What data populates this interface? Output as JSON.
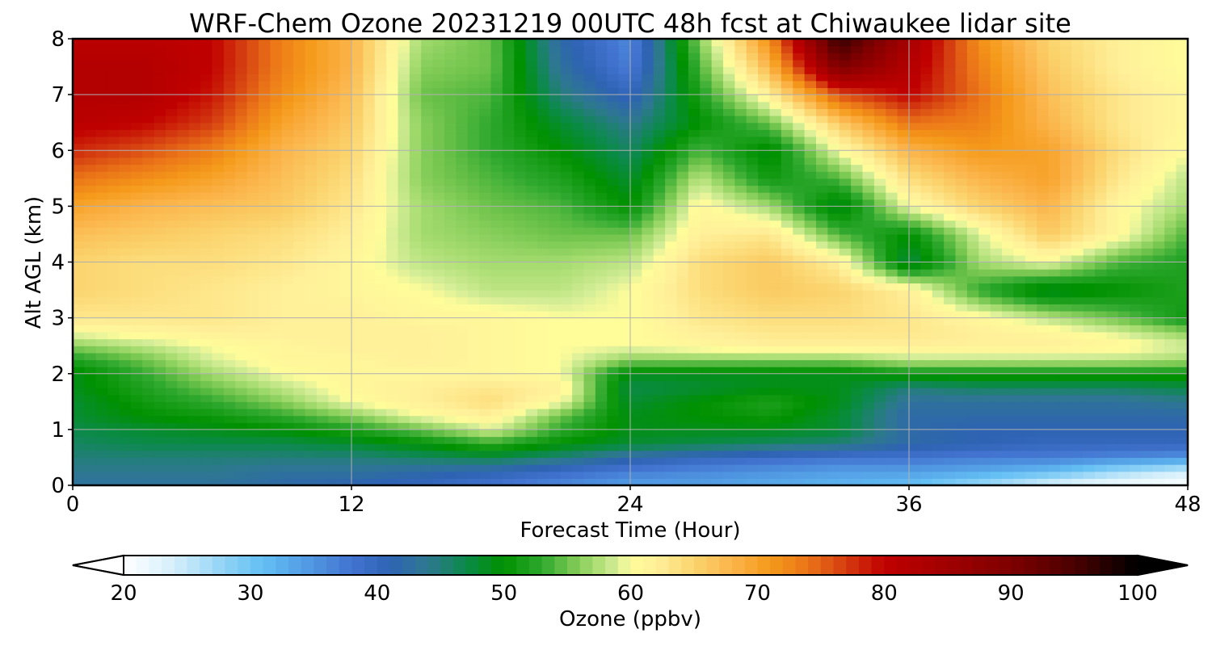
{
  "chart_data": {
    "type": "heatmap",
    "title": "WRF-Chem Ozone  20231219 00UTC 48h fcst at Chiwaukee lidar site",
    "xlabel": "Forecast Time (Hour)",
    "ylabel": "Alt AGL (km)",
    "xlim": [
      0,
      48
    ],
    "ylim": [
      0,
      8
    ],
    "xticks": [
      0,
      12,
      24,
      36,
      48
    ],
    "yticks": [
      0,
      1,
      2,
      3,
      4,
      5,
      6,
      7,
      8
    ],
    "grid": true,
    "x": [
      0,
      3,
      6,
      9,
      12,
      15,
      18,
      21,
      24,
      27,
      30,
      33,
      36,
      39,
      42,
      45,
      48
    ],
    "y": [
      0,
      0.25,
      0.5,
      0.75,
      1,
      1.25,
      1.5,
      1.75,
      2,
      2.25,
      2.5,
      2.75,
      3,
      3.5,
      4,
      4.5,
      5,
      5.5,
      6,
      6.5,
      7,
      7.5,
      8
    ],
    "z": [
      [
        43,
        43,
        43,
        42,
        41,
        40,
        38,
        36,
        34,
        34,
        33,
        32,
        31,
        27,
        23,
        21,
        20
      ],
      [
        44,
        44,
        44,
        43,
        43,
        42,
        41,
        39,
        37,
        36,
        35,
        34,
        34,
        33,
        31,
        27,
        24
      ],
      [
        45,
        45,
        45,
        45,
        45,
        46,
        47,
        45,
        42,
        40,
        39,
        38,
        38,
        37,
        37,
        36,
        35
      ],
      [
        46,
        47,
        47,
        47,
        48,
        50,
        53,
        50,
        48,
        47,
        46,
        45,
        42,
        41,
        40,
        40,
        40
      ],
      [
        47,
        48,
        49,
        50,
        52,
        55,
        59,
        53,
        49,
        49,
        49,
        48,
        42,
        41,
        41,
        41,
        41
      ],
      [
        48,
        50,
        51,
        53,
        56,
        60,
        62,
        55,
        49,
        50,
        51,
        48,
        42,
        42,
        42,
        42,
        42
      ],
      [
        48,
        51,
        53,
        56,
        60,
        62,
        64,
        60,
        48,
        50,
        52,
        49,
        43,
        43,
        43,
        43,
        44
      ],
      [
        49,
        52,
        55,
        58,
        61,
        62,
        63,
        62,
        47,
        48,
        49,
        49,
        45,
        46,
        46,
        46,
        47
      ],
      [
        49,
        53,
        57,
        60,
        61,
        61,
        61,
        60,
        49,
        49,
        49,
        49,
        51,
        51,
        51,
        51,
        51
      ],
      [
        52,
        55,
        59,
        61,
        61,
        62,
        61,
        60,
        56,
        56,
        56,
        56,
        58,
        58,
        58,
        58,
        57
      ],
      [
        56,
        58,
        60,
        61,
        62,
        62,
        61,
        60,
        60,
        61,
        62,
        62,
        62,
        62,
        62,
        61,
        59
      ],
      [
        60,
        61,
        62,
        62,
        62,
        62,
        61,
        60,
        60,
        62,
        63,
        63,
        63,
        62,
        61,
        59,
        56
      ],
      [
        63,
        63,
        63,
        62,
        62,
        61,
        61,
        60,
        60,
        63,
        64,
        64,
        63,
        61,
        58,
        55,
        51
      ],
      [
        65,
        64,
        63,
        62,
        61,
        60,
        58,
        58,
        60,
        64,
        66,
        65,
        62,
        53,
        48,
        50,
        52
      ],
      [
        65,
        64,
        64,
        63,
        61,
        58,
        57,
        57,
        58,
        64,
        66,
        62,
        47,
        57,
        60,
        54,
        52
      ],
      [
        67,
        66,
        65,
        64,
        62,
        57,
        56,
        55,
        55,
        62,
        63,
        54,
        50,
        59,
        66,
        61,
        54
      ],
      [
        70,
        68,
        67,
        66,
        63,
        57,
        55,
        54,
        50,
        61,
        57,
        48,
        60,
        65,
        68,
        61,
        57
      ],
      [
        74,
        72,
        70,
        67,
        64,
        56,
        54,
        52,
        48,
        58,
        51,
        54,
        64,
        68,
        70,
        63,
        58
      ],
      [
        78,
        76,
        73,
        68,
        65,
        56,
        53,
        50,
        46,
        54,
        49,
        60,
        68,
        71,
        70,
        64,
        60
      ],
      [
        81,
        80,
        77,
        70,
        66,
        56,
        53,
        48,
        44,
        50,
        55,
        66,
        74,
        73,
        68,
        63,
        61
      ],
      [
        82,
        82,
        79,
        72,
        67,
        55,
        54,
        45,
        40,
        52,
        62,
        76,
        80,
        74,
        67,
        63,
        61
      ],
      [
        82,
        82,
        80,
        73,
        68,
        56,
        55,
        43,
        37,
        54,
        68,
        90,
        82,
        73,
        66,
        62,
        60
      ],
      [
        81,
        81,
        80,
        73,
        68,
        57,
        55,
        42,
        36,
        56,
        72,
        97,
        84,
        72,
        65,
        62,
        60
      ]
    ],
    "colorbar": {
      "label": "Ozone  (ppbv)",
      "ticks": [
        20,
        30,
        40,
        50,
        60,
        70,
        80,
        90,
        100
      ],
      "vmin": 20,
      "vmax": 100,
      "extend": "both"
    },
    "colors": {
      "stops": [
        [
          20,
          "#ffffff"
        ],
        [
          24,
          "#d5effb"
        ],
        [
          28,
          "#8fd2f6"
        ],
        [
          31,
          "#63bff4"
        ],
        [
          35,
          "#4f95e0"
        ],
        [
          38,
          "#4273d0"
        ],
        [
          41,
          "#2e63b3"
        ],
        [
          44,
          "#2e7890"
        ],
        [
          47,
          "#0b8a4a"
        ],
        [
          50,
          "#009100"
        ],
        [
          53,
          "#2ea82e"
        ],
        [
          55,
          "#6cc24a"
        ],
        [
          57,
          "#a4db6e"
        ],
        [
          59,
          "#d6ee98"
        ],
        [
          60,
          "#fffc9a"
        ],
        [
          62,
          "#fff09a"
        ],
        [
          65,
          "#fbd46e"
        ],
        [
          68,
          "#fbb44a"
        ],
        [
          71,
          "#f59a1a"
        ],
        [
          74,
          "#ea7318"
        ],
        [
          77,
          "#d43c10"
        ],
        [
          80,
          "#c00000"
        ],
        [
          85,
          "#a00000"
        ],
        [
          90,
          "#7e0000"
        ],
        [
          95,
          "#4a0000"
        ],
        [
          100,
          "#000000"
        ]
      ]
    }
  }
}
